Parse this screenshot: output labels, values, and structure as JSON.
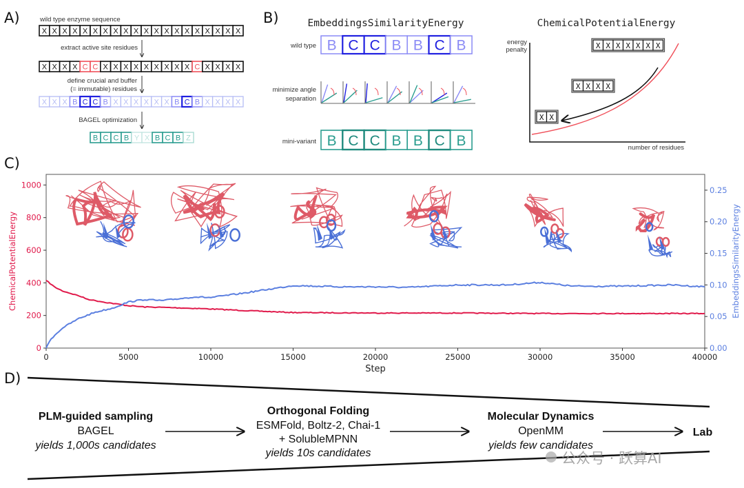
{
  "panels": {
    "a": {
      "label": "A)",
      "title": "wild type enzyme sequence",
      "step1": "extract active site residues",
      "step2_line1": "define crucial and buffer",
      "step2_line2": "(= immutable) residues",
      "step3": "BAGEL optimization",
      "rows": [
        {
          "letters": "XXXXXXXXXXXXXXXXXXXX",
          "states": "nnnnnnnnnnnnnnnnnnnn"
        },
        {
          "letters": "XXXXCCXXXXXXXXXCXXXX",
          "states": "nnnnrrnnnnnnnnnrnnnn"
        },
        {
          "letters": "XXXBCCBXXXXXXBCBXXXX",
          "states": "lllmddmllllllmdmllll"
        },
        {
          "letters": "BCCBYXBCBZ",
          "states": "ttttffttts"
        }
      ]
    },
    "b": {
      "label": "B)",
      "left_title": "EmbeddingsSimilarityEnergy",
      "wild_type_label": "wild type",
      "angle_label_line1": "minimize angle",
      "angle_label_line2": "separation",
      "mini_variant_label": "mini-variant",
      "wild_type_row": {
        "letters": "BCCBBCB",
        "states": "mddmmdm"
      },
      "mini_variant_row": {
        "letters": "BCCBBCB",
        "states": "tTTttTt"
      },
      "right_title": "ChemicalPotentialEnergy",
      "y_axis_label_line1": "energy",
      "y_axis_label_line2": "penalty",
      "x_axis_label": "number of residues",
      "sequence_boxes": [
        "XXXXXXX",
        "XXXX",
        "XX"
      ]
    },
    "c": {
      "label": "C)"
    },
    "d": {
      "label": "D)",
      "stages": [
        {
          "title": "PLM-guided sampling",
          "lines": [
            "BAGEL"
          ],
          "yield": "yields 1,000s candidates"
        },
        {
          "title": "Orthogonal Folding",
          "lines": [
            "ESMFold, Boltz-2, Chai-1",
            "+ SolubleMPNN"
          ],
          "yield": "yields 10s candidates"
        },
        {
          "title": "Molecular Dynamics",
          "lines": [
            "OpenMM"
          ],
          "yield": "yields few candidates"
        }
      ],
      "final": "Lab"
    }
  },
  "watermark": "公众号 · 跃算AI",
  "colors": {
    "chemical_potential": "#e0194a",
    "embeddings_similarity": "#5b7fe0",
    "active_site_red": "#f0505a",
    "crucial_blue": "#2020e0",
    "buffer_blue": "#8a8af5",
    "light_blue": "#b5bcf5",
    "teal": "#2a9d8f",
    "structure_red": "#de5a67",
    "structure_blue": "#4a6fd6"
  },
  "chart_data": {
    "type": "line",
    "xlabel": "Step",
    "ylabel_left": "ChemicalPotentialEnergy",
    "ylabel_right": "EmbeddingsSimilarityEnergy",
    "xlim": [
      0,
      40000
    ],
    "ylim_left": [
      0,
      1065
    ],
    "ylim_right": [
      0,
      0.275
    ],
    "x_ticks": [
      "0",
      "5000",
      "10000",
      "15000",
      "20000",
      "25000",
      "30000",
      "35000",
      "40000"
    ],
    "y_ticks_left": [
      "0",
      "200",
      "400",
      "600",
      "800",
      "1000"
    ],
    "y_ticks_right": [
      "0.00",
      "0.05",
      "0.10",
      "0.15",
      "0.20",
      "0.25"
    ],
    "grid": false,
    "series": [
      {
        "name": "ChemicalPotentialEnergy",
        "axis": "left",
        "x": [
          0,
          500,
          1000,
          2000,
          2500,
          3500,
          5000,
          6000,
          7000,
          10000,
          12500,
          15000,
          20000,
          25000,
          30000,
          35000,
          40000
        ],
        "y": [
          415,
          375,
          350,
          320,
          300,
          282,
          260,
          252,
          250,
          240,
          228,
          218,
          215,
          215,
          212,
          212,
          212
        ]
      },
      {
        "name": "EmbeddingsSimilarityEnergy",
        "axis": "right",
        "x": [
          0,
          300,
          1000,
          2000,
          3000,
          4000,
          5000,
          6000,
          7000,
          9000,
          10000,
          12000,
          14000,
          15000,
          18000,
          20000,
          22000,
          25000,
          28000,
          30000,
          32000,
          35000,
          38000,
          40000
        ],
        "y": [
          0,
          0.015,
          0.032,
          0.047,
          0.057,
          0.063,
          0.073,
          0.077,
          0.075,
          0.081,
          0.08,
          0.087,
          0.095,
          0.099,
          0.097,
          0.097,
          0.096,
          0.1,
          0.1,
          0.104,
          0.098,
          0.098,
          0.1,
          0.097
        ]
      }
    ],
    "inset_structures": 6
  }
}
